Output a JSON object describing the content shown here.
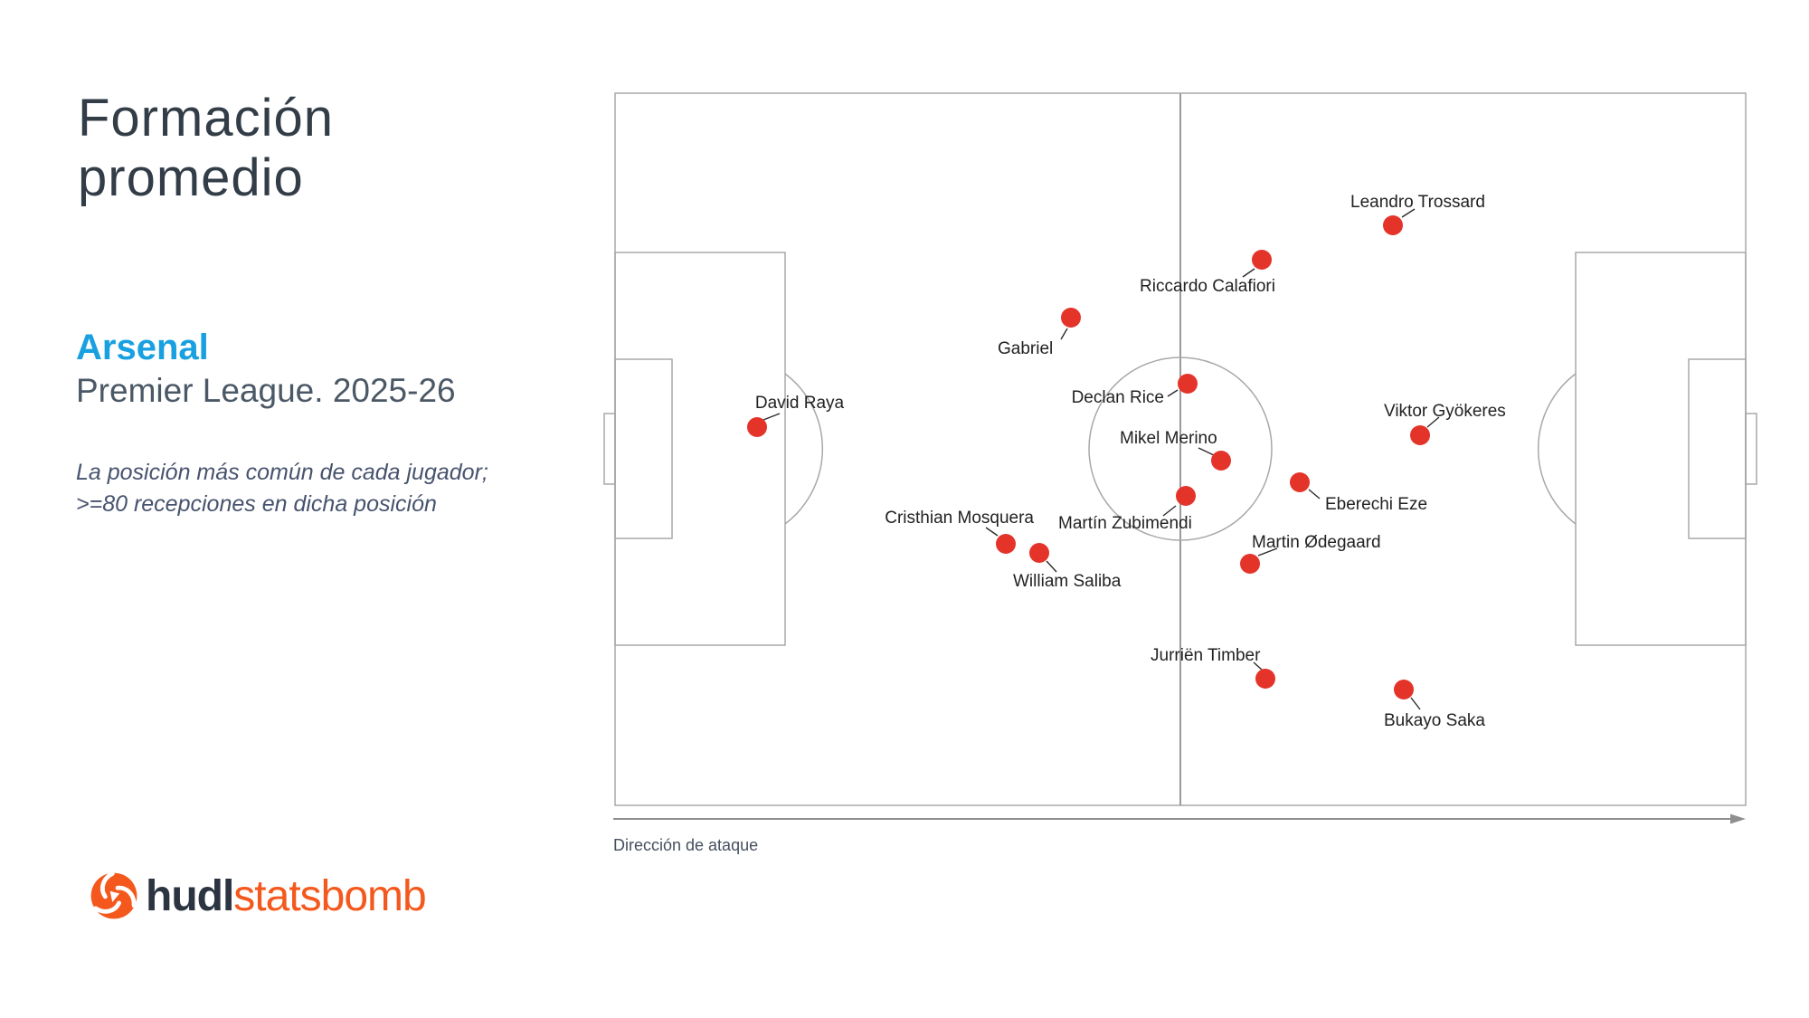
{
  "header": {
    "title_lines": [
      "Formación",
      "promedio"
    ],
    "team": "Arsenal",
    "competition": "Premier League. 2025-26",
    "note_lines": [
      "La posición más común de cada jugador;",
      ">=80 recepciones en dicha posición"
    ]
  },
  "pitch": {
    "attack_direction_label": "Dirección de ataque"
  },
  "footer": {
    "brand_bold": "hudl",
    "brand_light": "statsbomb"
  },
  "colors": {
    "dot_red": "#e4342a",
    "team_blue": "#18a0e0",
    "brand_orange": "#f4581c",
    "brand_navy": "#2b3440",
    "pitch_line_gray": "#a8a8a8",
    "title_slate": "#323d47",
    "body_slate": "#4b5866",
    "note_slate": "#47536e",
    "label_black": "#222222"
  },
  "chart_data": {
    "type": "scatter",
    "title": "Formación promedio",
    "team": "Arsenal",
    "season": "Premier League. 2025-26",
    "note": "La posición más común de cada jugador; >=80 recepciones en dicha posición",
    "attack_direction": "left-to-right",
    "dot_radius": 11,
    "coordinate_space": "page pixels, 2000x1125, pitch rect x:680-1930 y:103-890",
    "players": [
      {
        "name": "David Raya",
        "dot": [
          837,
          472
        ],
        "label": [
          884,
          451
        ],
        "anchor": "middle",
        "leader": [
          844,
          464,
          862,
          457
        ]
      },
      {
        "name": "Gabriel",
        "dot": [
          1184,
          351
        ],
        "label": [
          1103,
          391
        ],
        "anchor": "start",
        "leader": [
          1180,
          363,
          1173,
          375
        ]
      },
      {
        "name": "Riccardo Calafiori",
        "dot": [
          1395,
          287
        ],
        "label": [
          1260,
          322
        ],
        "anchor": "start",
        "leader": [
          1387,
          297,
          1374,
          306
        ]
      },
      {
        "name": "Leandro Trossard",
        "dot": [
          1540,
          249
        ],
        "label": [
          1493,
          229
        ],
        "anchor": "start",
        "leader": [
          1550,
          240,
          1564,
          231
        ]
      },
      {
        "name": "Declan Rice",
        "dot": [
          1313,
          424
        ],
        "label": [
          1287,
          445
        ],
        "anchor": "end",
        "leader": [
          1302,
          431,
          1291,
          438
        ]
      },
      {
        "name": "Mikel Merino",
        "dot": [
          1350,
          509
        ],
        "label": [
          1238,
          490
        ],
        "anchor": "start",
        "leader": [
          1325,
          495,
          1342,
          503
        ]
      },
      {
        "name": "Martín Zubimendi",
        "dot": [
          1311,
          548
        ],
        "label": [
          1170,
          584
        ],
        "anchor": "start",
        "leader": [
          1300,
          559,
          1286,
          570
        ]
      },
      {
        "name": "Eberechi Eze",
        "dot": [
          1437,
          533
        ],
        "label": [
          1465,
          563
        ],
        "anchor": "start",
        "leader": [
          1447,
          541,
          1459,
          551
        ]
      },
      {
        "name": "Viktor Gyökeres",
        "dot": [
          1570,
          481
        ],
        "label": [
          1530,
          460
        ],
        "anchor": "start",
        "leader": [
          1578,
          472,
          1591,
          461
        ]
      },
      {
        "name": "Martin Ødegaard",
        "dot": [
          1382,
          623
        ],
        "label": [
          1384,
          605
        ],
        "anchor": "start",
        "leader": [
          1391,
          614,
          1412,
          606
        ]
      },
      {
        "name": "Cristhian Mosquera",
        "dot": [
          1112,
          601
        ],
        "label": [
          1143,
          578
        ],
        "anchor": "end",
        "leader": [
          1103,
          592,
          1090,
          583
        ]
      },
      {
        "name": "William Saliba",
        "dot": [
          1149,
          611
        ],
        "label": [
          1120,
          648
        ],
        "anchor": "start",
        "leader": [
          1157,
          620,
          1168,
          632
        ]
      },
      {
        "name": "Jurriën Timber",
        "dot": [
          1399,
          750
        ],
        "label": [
          1272,
          730
        ],
        "anchor": "start",
        "leader": [
          1396,
          741,
          1386,
          732
        ]
      },
      {
        "name": "Bukayo Saka",
        "dot": [
          1552,
          762
        ],
        "label": [
          1530,
          802
        ],
        "anchor": "start",
        "leader": [
          1560,
          771,
          1570,
          784
        ]
      }
    ]
  }
}
